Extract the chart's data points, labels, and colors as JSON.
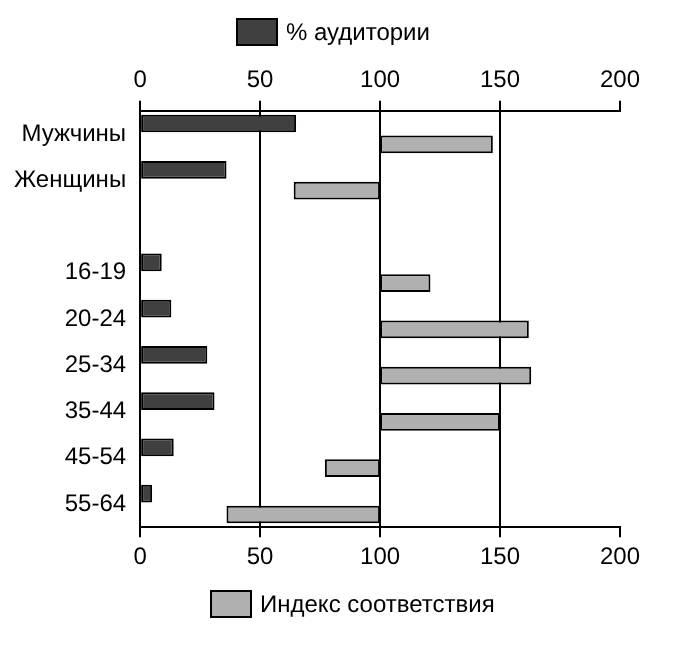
{
  "chart_data": {
    "type": "bar",
    "orientation": "horizontal",
    "categories": [
      "Мужчины",
      "Женщины",
      null,
      "16-19",
      "20-24",
      "25-34",
      "35-44",
      "45-54",
      "55-64"
    ],
    "series": [
      {
        "name": "% аудитории",
        "color": "#404040",
        "values": [
          65,
          36,
          null,
          9,
          13,
          28,
          31,
          14,
          5
        ]
      },
      {
        "name": "Индекс соответствия",
        "color": "#b0b0b0",
        "base": [
          100,
          100,
          null,
          100,
          100,
          100,
          100,
          100,
          100
        ],
        "values": [
          47,
          -36,
          null,
          21,
          62,
          63,
          50,
          -23,
          -64
        ]
      }
    ],
    "xlim": [
      0,
      200
    ],
    "xticks": [
      0,
      50,
      100,
      150,
      200
    ],
    "x2lim": [
      0,
      200
    ],
    "x2ticks": [
      0,
      50,
      100,
      150,
      200
    ],
    "grid": "x",
    "legend": "top"
  }
}
